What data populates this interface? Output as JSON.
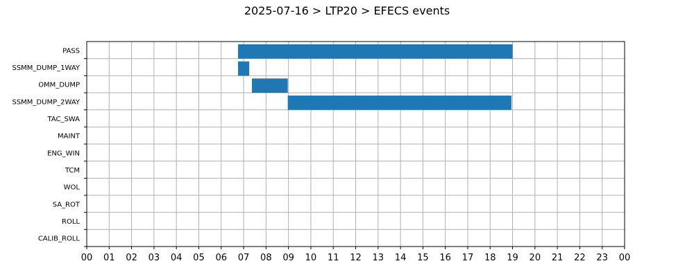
{
  "chart_data": {
    "type": "gantt",
    "title": "2025-07-16 > LTP20 > EFECS events",
    "xlabel": "",
    "ylabel": "",
    "x_ticks": [
      "00",
      "01",
      "02",
      "03",
      "04",
      "05",
      "06",
      "07",
      "08",
      "09",
      "10",
      "11",
      "12",
      "13",
      "14",
      "15",
      "16",
      "17",
      "18",
      "19",
      "20",
      "21",
      "22",
      "23",
      "00"
    ],
    "xlim_hours": [
      0,
      24
    ],
    "grid": true,
    "bar_color": "#1f77b4",
    "grid_color": "#b0b0b0",
    "categories": [
      "PASS",
      "SSMM_DUMP_1WAY",
      "OMM_DUMP",
      "SSMM_DUMP_2WAY",
      "TAC_SWA",
      "MAINT",
      "ENG_WIN",
      "TCM",
      "WOL",
      "SA_ROT",
      "ROLL",
      "CALIB_ROLL"
    ],
    "events": [
      {
        "category": "PASS",
        "start_hour": 6.75,
        "end_hour": 19.0
      },
      {
        "category": "SSMM_DUMP_1WAY",
        "start_hour": 6.75,
        "end_hour": 7.25
      },
      {
        "category": "OMM_DUMP",
        "start_hour": 7.37,
        "end_hour": 8.97
      },
      {
        "category": "SSMM_DUMP_2WAY",
        "start_hour": 8.97,
        "end_hour": 18.95
      }
    ]
  }
}
